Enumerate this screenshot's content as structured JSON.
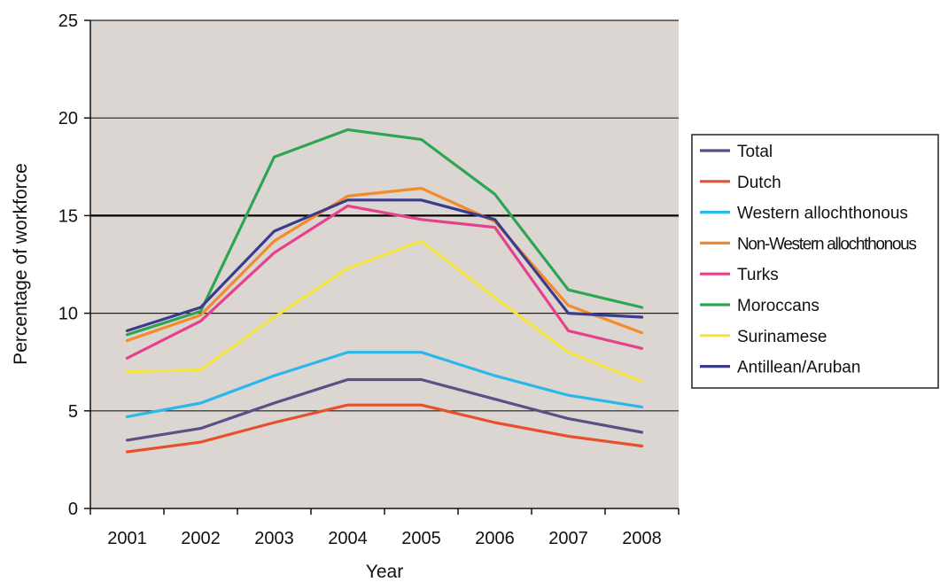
{
  "chart_data": {
    "type": "line",
    "xlabel": "Year",
    "ylabel": "Percentage of workforce",
    "categories": [
      "2001",
      "2002",
      "2003",
      "2004",
      "2005",
      "2006",
      "2007",
      "2008"
    ],
    "ylim": [
      0,
      25
    ],
    "yticks": [
      0,
      5,
      10,
      15,
      20,
      25
    ],
    "grid": "horizontal",
    "legend_position": "right",
    "plot_background": "#dcd6d3",
    "series": [
      {
        "name": "Total",
        "color": "#5a4f86",
        "values": [
          3.5,
          4.1,
          5.4,
          6.6,
          6.6,
          5.6,
          4.6,
          3.9
        ]
      },
      {
        "name": "Dutch",
        "color": "#e8502c",
        "values": [
          2.9,
          3.4,
          4.4,
          5.3,
          5.3,
          4.4,
          3.7,
          3.2
        ]
      },
      {
        "name": "Western allochthonous",
        "color": "#2ab8ea",
        "values": [
          4.7,
          5.4,
          6.8,
          8.0,
          8.0,
          6.8,
          5.8,
          5.2
        ]
      },
      {
        "name": "Non-Western allochthonous",
        "color": "#f38b2a",
        "values": [
          8.6,
          9.9,
          13.7,
          16.0,
          16.4,
          14.7,
          10.4,
          9.0
        ]
      },
      {
        "name": "Turks",
        "color": "#e6418c",
        "values": [
          7.7,
          9.6,
          13.1,
          15.5,
          14.8,
          14.4,
          9.1,
          8.2
        ]
      },
      {
        "name": "Moroccans",
        "color": "#2ea651",
        "values": [
          8.9,
          10.1,
          18.0,
          19.4,
          18.9,
          16.1,
          11.2,
          10.3
        ]
      },
      {
        "name": "Surinamese",
        "color": "#f5e33d",
        "values": [
          7.0,
          7.1,
          9.8,
          12.3,
          13.7,
          10.8,
          8.0,
          6.5
        ]
      },
      {
        "name": "Antillean/Aruban",
        "color": "#3b3c8c",
        "values": [
          9.1,
          10.3,
          14.2,
          15.8,
          15.8,
          14.8,
          10.0,
          9.8
        ]
      }
    ]
  }
}
